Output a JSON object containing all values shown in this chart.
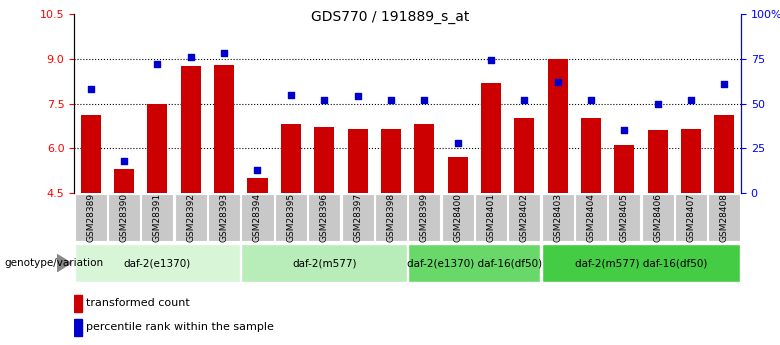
{
  "title": "GDS770 / 191889_s_at",
  "categories": [
    "GSM28389",
    "GSM28390",
    "GSM28391",
    "GSM28392",
    "GSM28393",
    "GSM28394",
    "GSM28395",
    "GSM28396",
    "GSM28397",
    "GSM28398",
    "GSM28399",
    "GSM28400",
    "GSM28401",
    "GSM28402",
    "GSM28403",
    "GSM28404",
    "GSM28405",
    "GSM28406",
    "GSM28407",
    "GSM28408"
  ],
  "bar_values": [
    7.1,
    5.3,
    7.5,
    8.75,
    8.8,
    5.0,
    6.8,
    6.7,
    6.65,
    6.65,
    6.8,
    5.7,
    8.2,
    7.0,
    9.0,
    7.0,
    6.1,
    6.6,
    6.65,
    7.1
  ],
  "scatter_pct": [
    58,
    18,
    72,
    76,
    78,
    13,
    55,
    52,
    54,
    52,
    52,
    28,
    74,
    52,
    62,
    52,
    35,
    50,
    52,
    61
  ],
  "ylim_left": [
    4.5,
    10.5
  ],
  "ylim_right": [
    0,
    100
  ],
  "yticks_left": [
    4.5,
    6.0,
    7.5,
    9.0,
    10.5
  ],
  "yticks_right": [
    0,
    25,
    50,
    75,
    100
  ],
  "ytick_labels_right": [
    "0",
    "25",
    "50",
    "75",
    "100%"
  ],
  "bar_color": "#CC0000",
  "scatter_color": "#0000CC",
  "groups": [
    {
      "label": "daf-2(e1370)",
      "start": 0,
      "end": 5,
      "color": "#d8f5d8"
    },
    {
      "label": "daf-2(m577)",
      "start": 5,
      "end": 10,
      "color": "#b8ecb8"
    },
    {
      "label": "daf-2(e1370) daf-16(df50)",
      "start": 10,
      "end": 14,
      "color": "#68d868"
    },
    {
      "label": "daf-2(m577) daf-16(df50)",
      "start": 14,
      "end": 20,
      "color": "#44cc44"
    }
  ],
  "legend_bar_label": "transformed count",
  "legend_scatter_label": "percentile rank within the sample",
  "genotype_label": "genotype/variation",
  "background_color": "#ffffff"
}
